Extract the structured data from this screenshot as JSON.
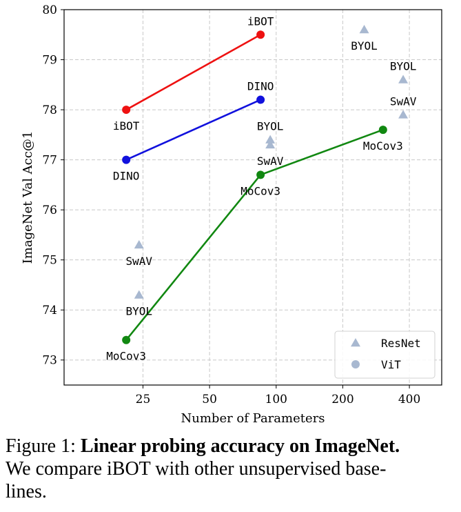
{
  "chart_data": {
    "type": "line",
    "xlabel": "Number of Parameters",
    "ylabel": "ImageNet Val Acc@1",
    "ylim": [
      72.5,
      80.0
    ],
    "yticks": [
      73,
      74,
      75,
      76,
      77,
      78,
      79,
      80
    ],
    "xscale": "log",
    "xticks": [
      25,
      50,
      100,
      200,
      400
    ],
    "xlim": [
      11,
      560
    ],
    "grid": true,
    "legend": {
      "placement": "bottom-right",
      "entries": [
        {
          "label": "ResNet",
          "marker": "triangle",
          "color": "#a8b8d0"
        },
        {
          "label": "ViT",
          "marker": "circle",
          "color": "#a8b8d0"
        }
      ]
    },
    "series": [
      {
        "key": "ibot",
        "color": "#ee1111",
        "points": [
          {
            "x": 21,
            "y": 78.0,
            "label": "iBOT",
            "label_pos": "below"
          },
          {
            "x": 85,
            "y": 79.5,
            "label": "iBOT",
            "label_pos": "above"
          }
        ]
      },
      {
        "key": "dino",
        "color": "#1111dd",
        "points": [
          {
            "x": 21,
            "y": 77.0,
            "label": "DINO",
            "label_pos": "below"
          },
          {
            "x": 85,
            "y": 78.2,
            "label": "DINO",
            "label_pos": "above"
          }
        ]
      },
      {
        "key": "mocov3",
        "color": "#118811",
        "points": [
          {
            "x": 21,
            "y": 73.4,
            "label": "MoCov3",
            "label_pos": "below"
          },
          {
            "x": 85,
            "y": 76.7,
            "label": "MoCov3",
            "label_pos": "below"
          },
          {
            "x": 304,
            "y": 77.6,
            "label": "MoCov3",
            "label_pos": "below"
          }
        ]
      }
    ],
    "resnet_points": [
      {
        "x": 24,
        "y": 75.3,
        "label": "SwAV",
        "label_pos": "below"
      },
      {
        "x": 24,
        "y": 74.3,
        "label": "BYOL",
        "label_pos": "below"
      },
      {
        "x": 94,
        "y": 77.4,
        "label": "BYOL",
        "label_pos": "above"
      },
      {
        "x": 94,
        "y": 77.3,
        "label": "SwAV",
        "label_pos": "below"
      },
      {
        "x": 250,
        "y": 79.6,
        "label": "BYOL",
        "label_pos": "below"
      },
      {
        "x": 375,
        "y": 78.6,
        "label": "BYOL",
        "label_pos": "above"
      },
      {
        "x": 375,
        "y": 77.9,
        "label": "SwAV",
        "label_pos": "above"
      }
    ]
  },
  "caption": {
    "prefix": "Figure 1: ",
    "bold": "Linear probing accuracy on ImageNet.",
    "line2": "We compare iBOT with other unsupervised base-",
    "line3": "lines."
  }
}
